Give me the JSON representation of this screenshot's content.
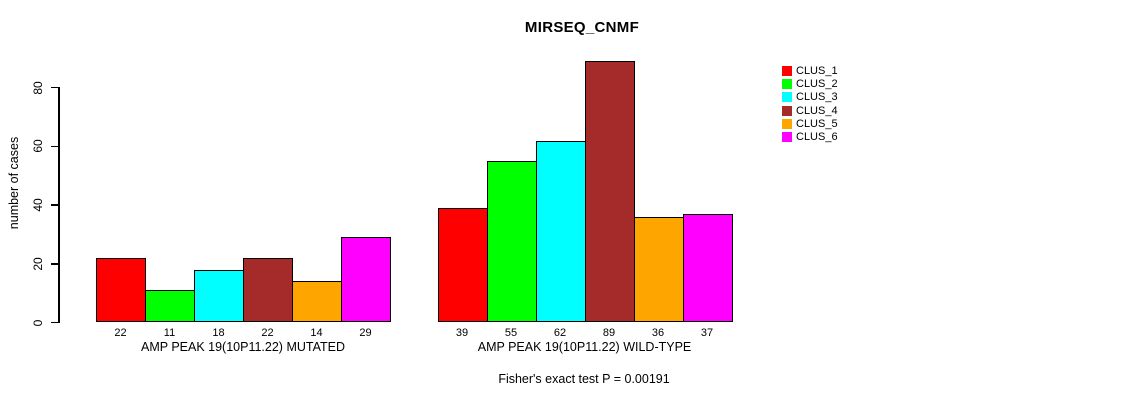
{
  "chart_data": {
    "type": "bar",
    "title": "MIRSEQ_CNMF",
    "ylabel": "number of cases",
    "xlabel": "",
    "yticks": [
      0,
      20,
      40,
      60,
      80
    ],
    "ylim": [
      0,
      90
    ],
    "grid": false,
    "legend_position": "right",
    "bar_value_labels": true,
    "categories": [
      "AMP PEAK 19(10P11.22) MUTATED",
      "AMP PEAK 19(10P11.22) WILD-TYPE"
    ],
    "series": [
      {
        "name": "CLUS_1",
        "color": "#FF0000",
        "values": [
          22,
          39
        ]
      },
      {
        "name": "CLUS_2",
        "color": "#00FF00",
        "values": [
          11,
          55
        ]
      },
      {
        "name": "CLUS_3",
        "color": "#00FFFF",
        "values": [
          18,
          62
        ]
      },
      {
        "name": "CLUS_4",
        "color": "#A52A2A",
        "values": [
          22,
          89
        ]
      },
      {
        "name": "CLUS_5",
        "color": "#FFA500",
        "values": [
          14,
          36
        ]
      },
      {
        "name": "CLUS_6",
        "color": "#FF00FF",
        "values": [
          29,
          37
        ]
      }
    ],
    "annotation": "Fisher's exact test P = 0.00191",
    "colors": {
      "background": "#FFFFFF",
      "axis": "#000000",
      "text": "#000000"
    }
  }
}
